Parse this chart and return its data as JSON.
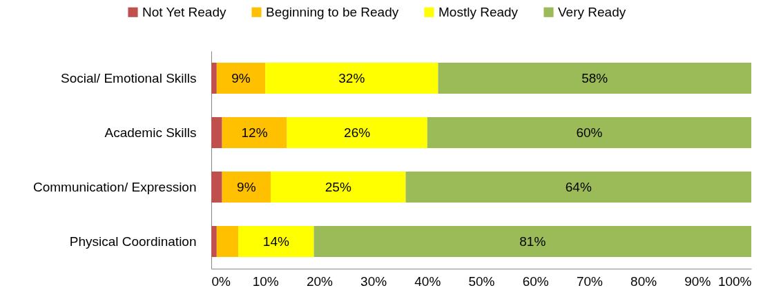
{
  "chart_data": {
    "type": "bar",
    "orientation": "horizontal",
    "stacked": true,
    "categories": [
      "Social/ Emotional Skills",
      "Academic Skills",
      "Communication/ Expression",
      "Physical Coordination"
    ],
    "series": [
      {
        "name": "Not Yet Ready",
        "color": "#c0504d",
        "values": [
          1,
          2,
          2,
          1
        ]
      },
      {
        "name": "Beginning to be Ready",
        "color": "#ffc000",
        "values": [
          9,
          12,
          9,
          4
        ],
        "value_labels": [
          "9%",
          "12%",
          "9%",
          null
        ]
      },
      {
        "name": "Mostly Ready",
        "color": "#ffff00",
        "values": [
          32,
          26,
          25,
          14
        ],
        "value_labels": [
          "32%",
          "26%",
          "25%",
          "14%"
        ]
      },
      {
        "name": "Very Ready",
        "color": "#9bbb59",
        "values": [
          58,
          60,
          64,
          81
        ],
        "value_labels": [
          "58%",
          "60%",
          "64%",
          "81%"
        ]
      }
    ],
    "xlim": [
      0,
      100
    ],
    "xticks": [
      {
        "value": 0,
        "label": "0%"
      },
      {
        "value": 10,
        "label": "10%"
      },
      {
        "value": 20,
        "label": "20%"
      },
      {
        "value": 30,
        "label": "30%"
      },
      {
        "value": 40,
        "label": "40%"
      },
      {
        "value": 50,
        "label": "50%"
      },
      {
        "value": 60,
        "label": "60%"
      },
      {
        "value": 70,
        "label": "70%"
      },
      {
        "value": 80,
        "label": "80%"
      },
      {
        "value": 90,
        "label": "90%"
      },
      {
        "value": 100,
        "label": "100%"
      }
    ],
    "grid": false,
    "legend": "top"
  }
}
